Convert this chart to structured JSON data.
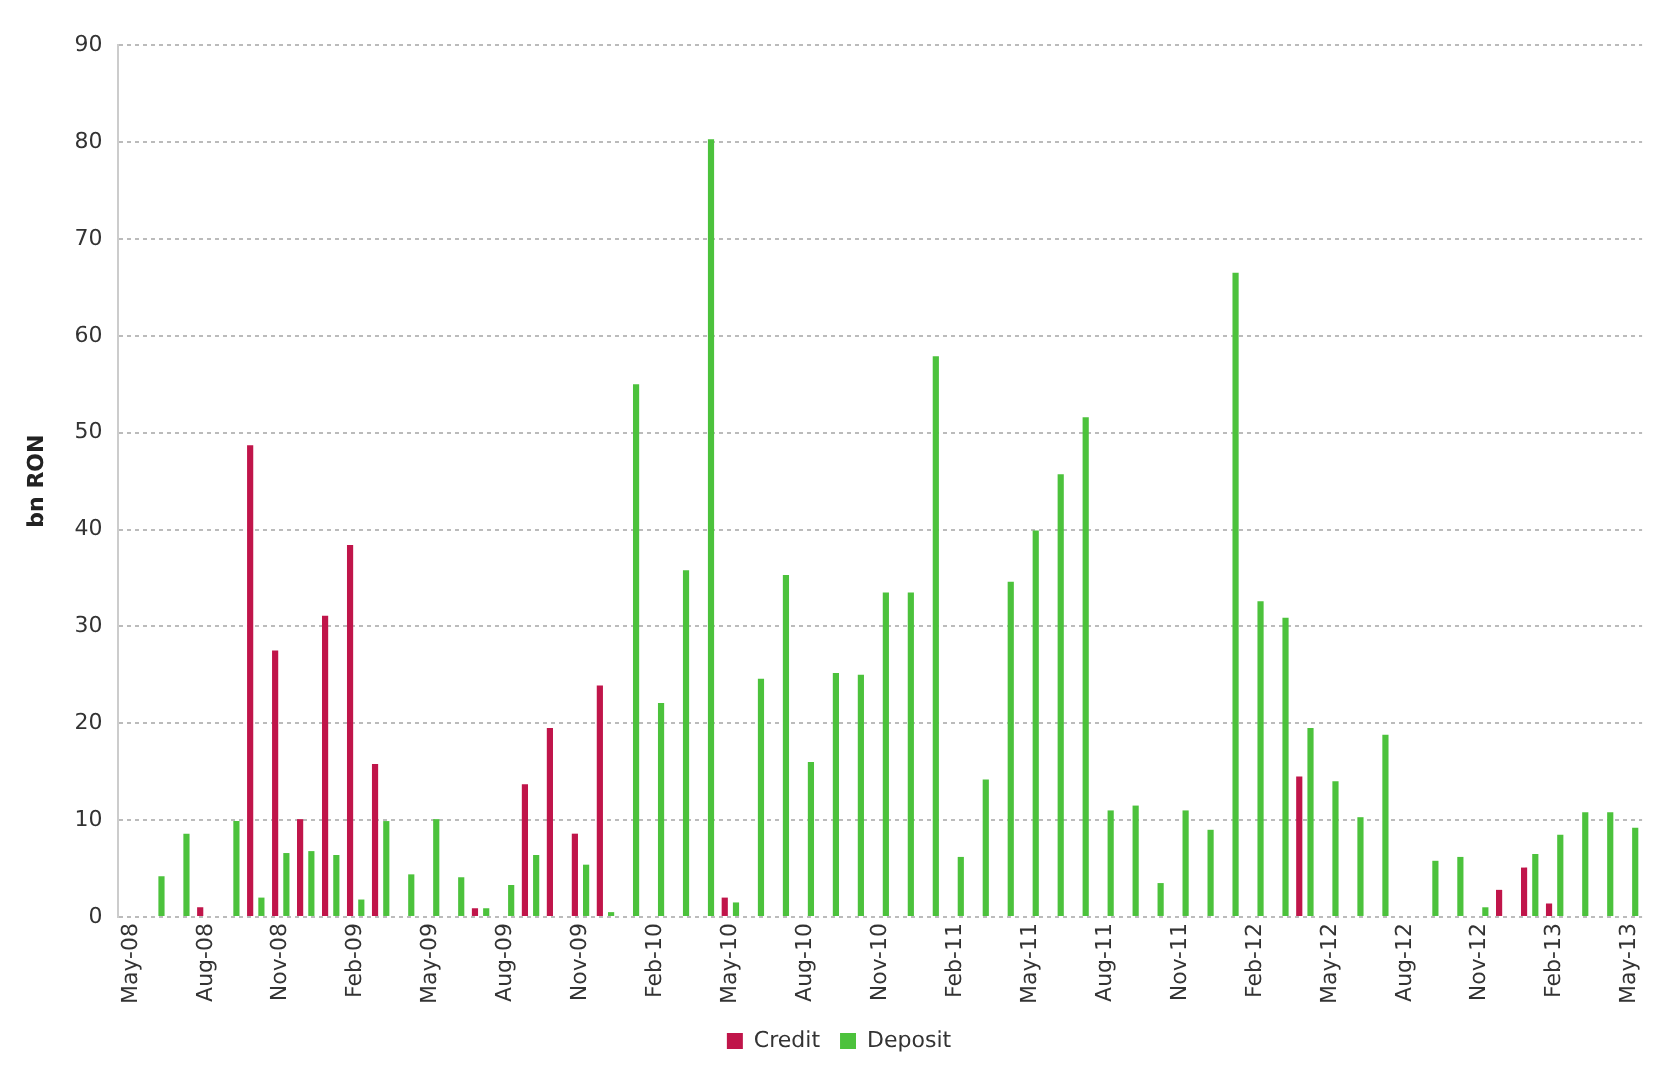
{
  "chart_data": {
    "type": "bar",
    "ylabel": "bn RON",
    "categories": [
      "May-08",
      null,
      null,
      "Aug-08",
      null,
      null,
      "Nov-08",
      null,
      null,
      "Feb-09",
      null,
      null,
      "May-09",
      null,
      null,
      "Aug-09",
      null,
      null,
      "Nov-09",
      null,
      null,
      "Feb-10",
      null,
      null,
      "May-10",
      null,
      null,
      "Aug-10",
      null,
      null,
      "Nov-10",
      null,
      null,
      "Feb-11",
      null,
      null,
      "May-11",
      null,
      null,
      "Aug-11",
      null,
      null,
      "Nov-11",
      null,
      null,
      "Feb-12",
      null,
      null,
      "May-12",
      null,
      null,
      "Aug-12",
      null,
      null,
      "Nov-12",
      null,
      null,
      "Feb-13",
      null,
      null,
      "May-13"
    ],
    "series": [
      {
        "name": "Credit",
        "color": "#c0154a",
        "values": [
          null,
          null,
          null,
          1,
          null,
          48.7,
          27.5,
          10.1,
          31.1,
          38.4,
          15.8,
          null,
          null,
          null,
          0.9,
          null,
          13.7,
          19.5,
          8.6,
          23.9,
          null,
          null,
          null,
          null,
          2,
          null,
          null,
          null,
          null,
          null,
          null,
          null,
          null,
          null,
          null,
          null,
          null,
          null,
          null,
          null,
          null,
          null,
          null,
          null,
          null,
          null,
          null,
          14.5,
          null,
          null,
          null,
          null,
          null,
          null,
          null,
          2.8,
          5.1,
          1.4,
          null,
          null,
          null
        ]
      },
      {
        "name": "Deposit",
        "color": "#4cc23c",
        "values": [
          null,
          4.2,
          8.6,
          null,
          9.9,
          2,
          6.6,
          6.8,
          6.4,
          1.8,
          9.9,
          4.4,
          10.1,
          4.1,
          0.9,
          3.3,
          6.4,
          null,
          5.4,
          0.5,
          55,
          22.1,
          35.8,
          80.3,
          1.5,
          24.6,
          35.3,
          16,
          25.2,
          25,
          33.5,
          33.5,
          57.9,
          6.2,
          14.2,
          34.6,
          39.9,
          45.7,
          51.6,
          11,
          11.5,
          3.5,
          11,
          9,
          66.5,
          32.6,
          30.9,
          19.5,
          14,
          10.3,
          18.8,
          null,
          5.8,
          6.2,
          1,
          null,
          6.5,
          8.5,
          10.8,
          10.8,
          9.2
        ]
      }
    ],
    "ylim": [
      0,
      90
    ],
    "yticks": [
      0,
      10,
      20,
      30,
      40,
      50,
      60,
      70,
      80,
      90
    ],
    "grid": "y",
    "legend": "bottom"
  }
}
